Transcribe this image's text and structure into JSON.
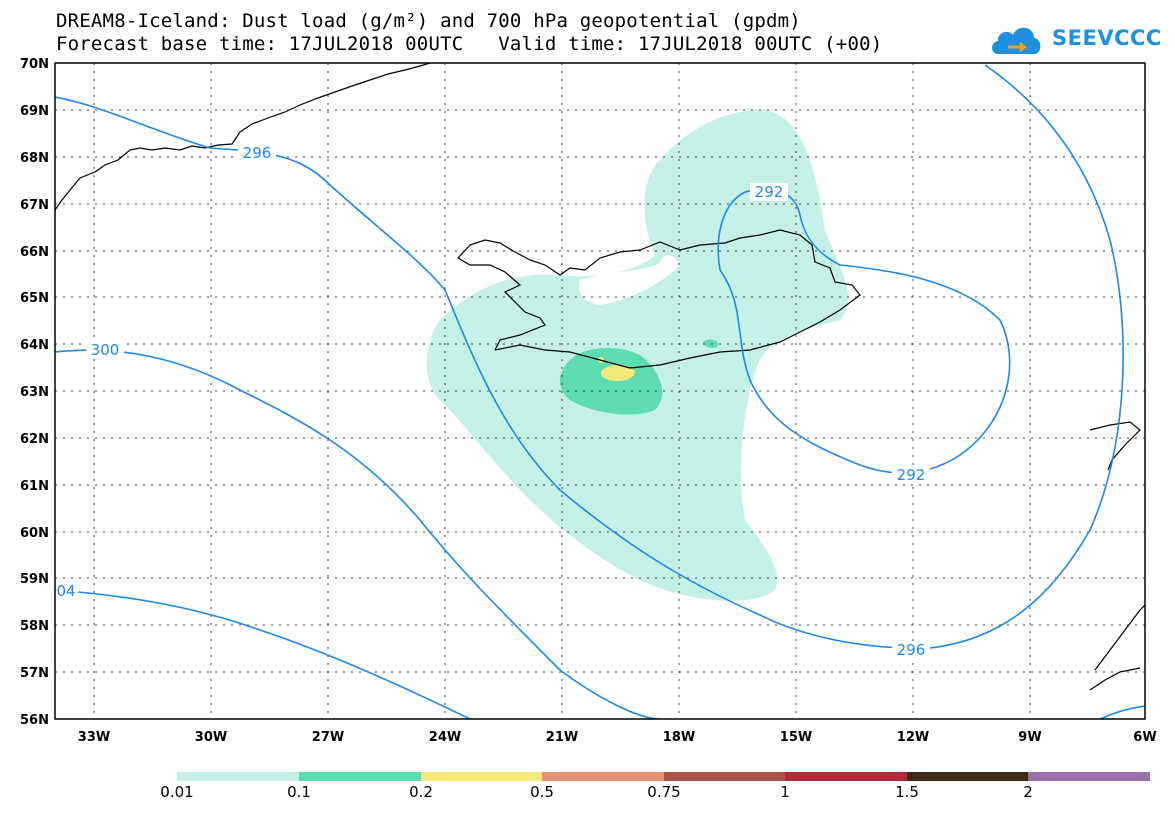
{
  "title": {
    "line1": "DREAM8-Iceland: Dust load (g/m²) and 700 hPa geopotential (gpdm)",
    "line2": "Forecast base time: 17JUL2018 00UTC   Valid time: 17JUL2018 00UTC (+00)"
  },
  "logo": {
    "text": "SEEVCCC",
    "icon": "cloud-icon"
  },
  "axes": {
    "lat_labels": [
      "70N",
      "69N",
      "68N",
      "67N",
      "66N",
      "65N",
      "64N",
      "63N",
      "62N",
      "61N",
      "60N",
      "59N",
      "58N",
      "57N",
      "56N"
    ],
    "lon_labels": [
      "33W",
      "30W",
      "27W",
      "24W",
      "21W",
      "18W",
      "15W",
      "12W",
      "9W",
      "6W"
    ]
  },
  "contours": {
    "color": "#1e88e5",
    "labels": [
      "296",
      "292",
      "300",
      "292",
      "296",
      "04"
    ]
  },
  "colorbar": {
    "colors": [
      "#c5f0e8",
      "#5cdcb0",
      "#f5e87a",
      "#e89270",
      "#a85248",
      "#b22a3c",
      "#7a0a2a",
      "#3a2a1a",
      "#9a70a8"
    ],
    "ticks": [
      "0.01",
      "0.1",
      "0.2",
      "0.5",
      "0.75",
      "1",
      "1.5",
      "2"
    ]
  }
}
